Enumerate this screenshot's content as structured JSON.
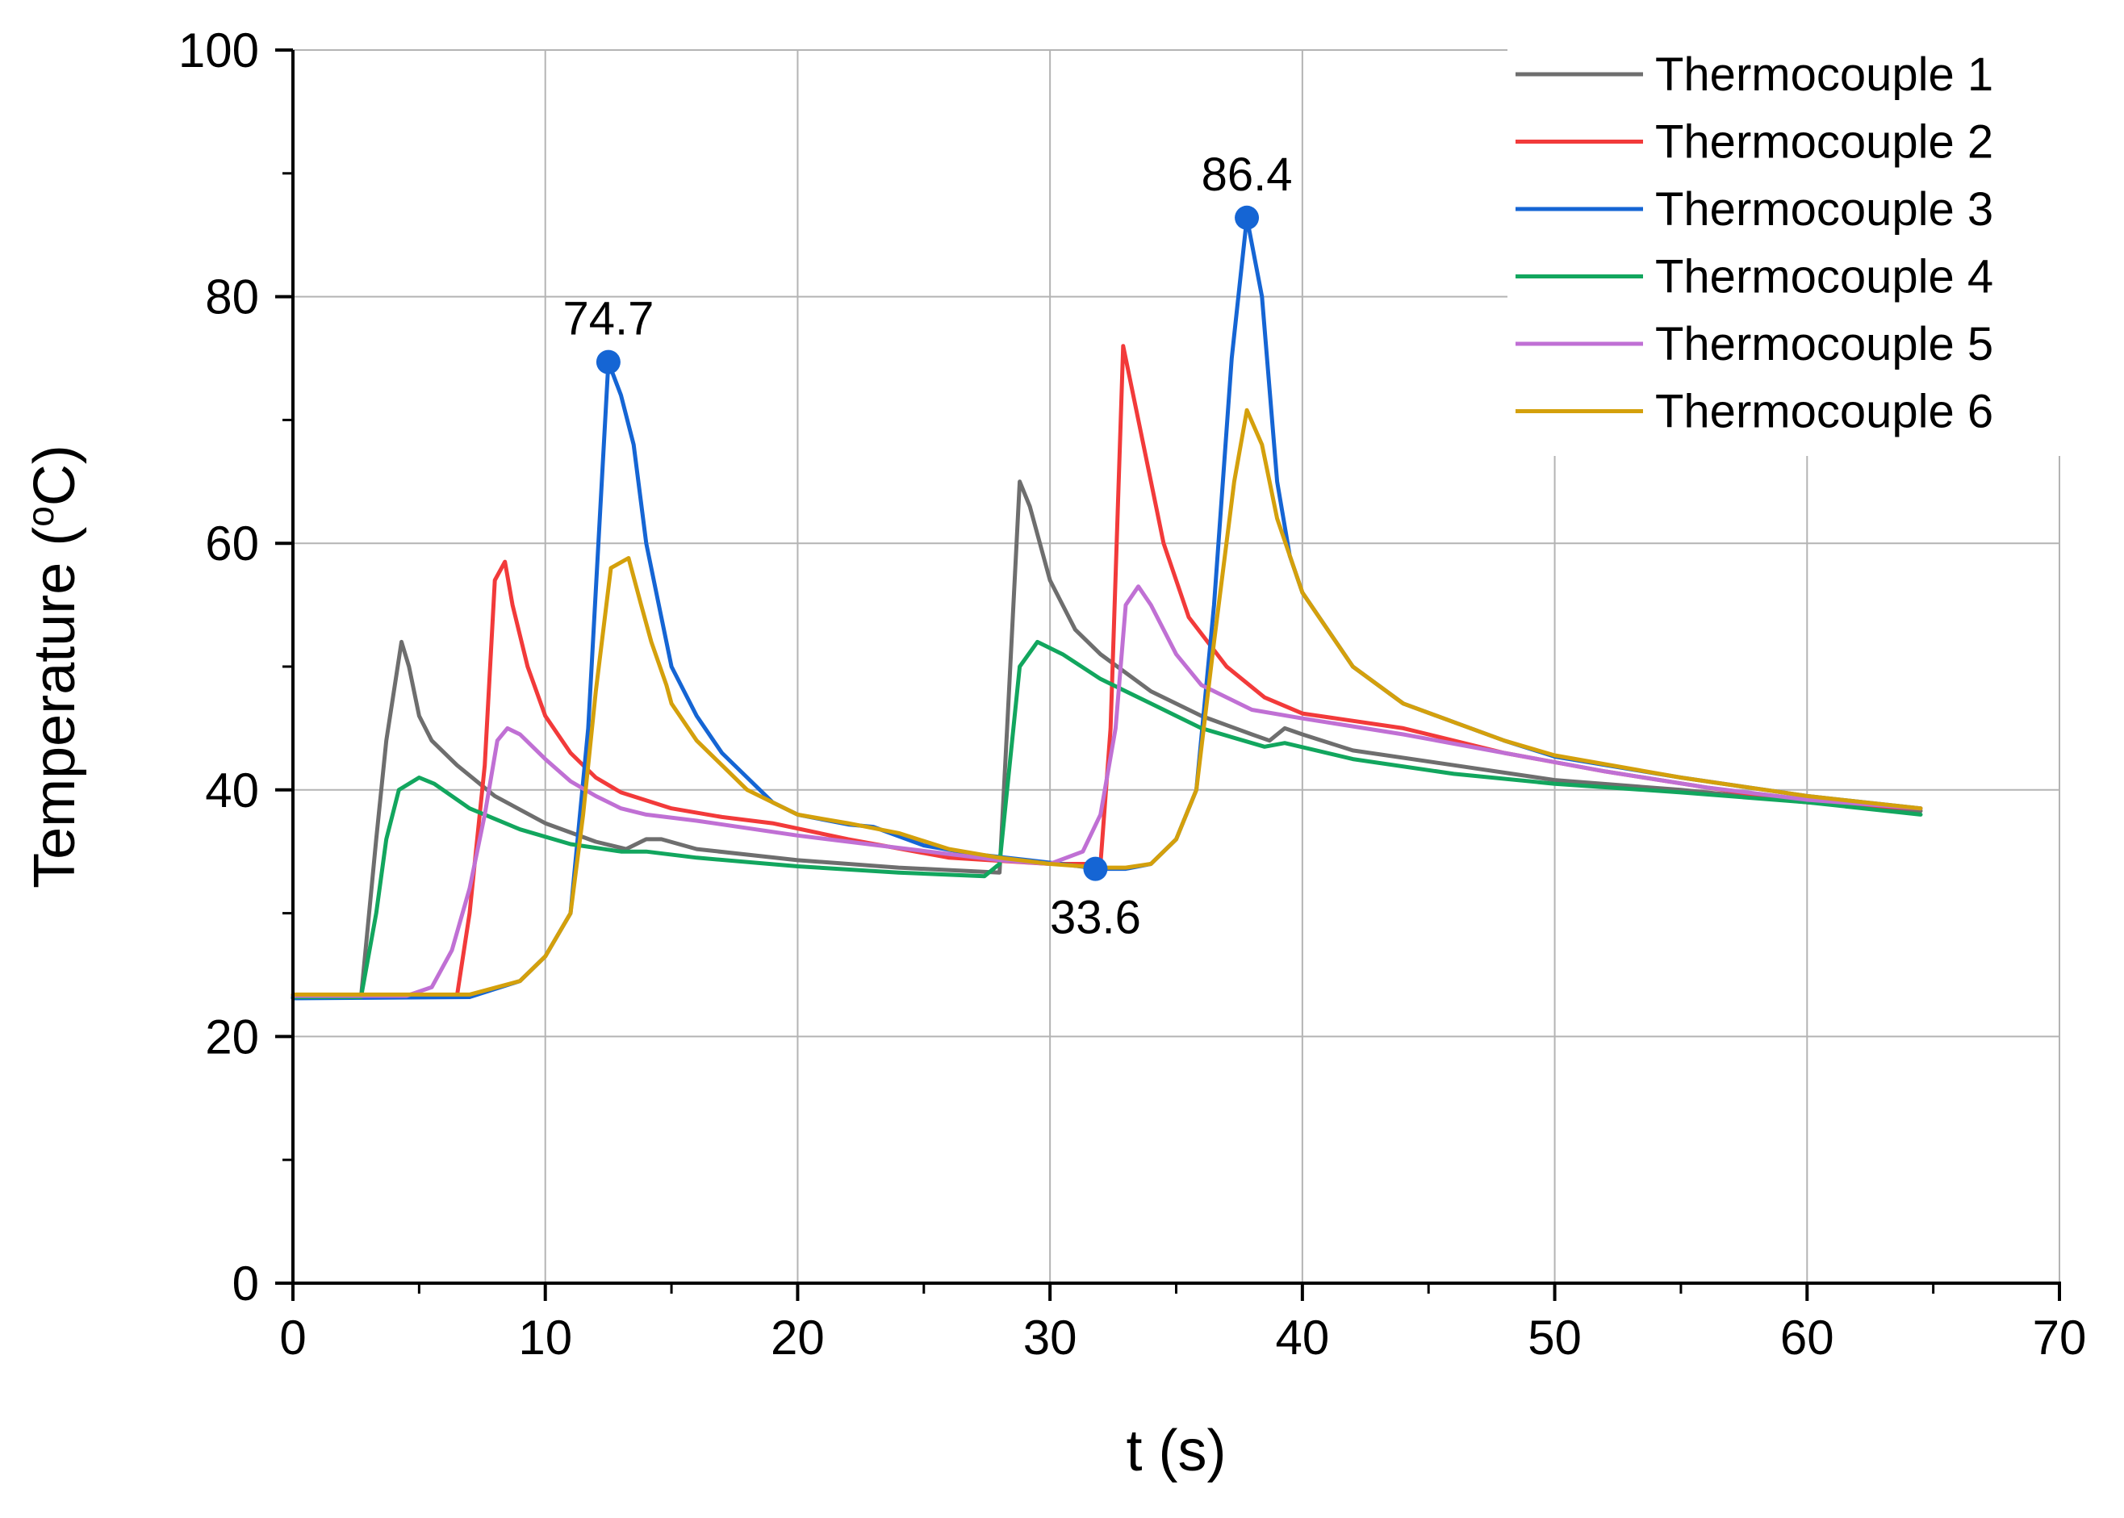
{
  "chart_data": {
    "type": "line",
    "title": "",
    "xlabel": "t (s)",
    "ylabel": "Temperature (°C)",
    "ylabel_parts": {
      "main": "Temperature (",
      "sup": "o",
      "unit": "C)"
    },
    "xlim": [
      0,
      70
    ],
    "ylim": [
      0,
      100
    ],
    "x_ticks": [
      0,
      10,
      20,
      30,
      40,
      50,
      60,
      70
    ],
    "y_ticks": [
      0,
      20,
      40,
      60,
      80,
      100
    ],
    "x_minor_step": 5,
    "y_minor_step": 10,
    "grid": true,
    "legend_position": "top-right",
    "series": [
      {
        "name": "Thermocouple 1",
        "color": "#6e6e6e",
        "points": [
          [
            0,
            23.2
          ],
          [
            2.7,
            23.2
          ],
          [
            3.3,
            36
          ],
          [
            3.7,
            44
          ],
          [
            4.0,
            48
          ],
          [
            4.3,
            52
          ],
          [
            4.6,
            50
          ],
          [
            5.0,
            46
          ],
          [
            5.5,
            44
          ],
          [
            6.5,
            42
          ],
          [
            8,
            39.5
          ],
          [
            10,
            37.3
          ],
          [
            12,
            35.8
          ],
          [
            13.2,
            35.2
          ],
          [
            14.0,
            36
          ],
          [
            14.6,
            36
          ],
          [
            16,
            35.2
          ],
          [
            20,
            34.3
          ],
          [
            24,
            33.7
          ],
          [
            28,
            33.3
          ],
          [
            28.3,
            45
          ],
          [
            28.8,
            65
          ],
          [
            29.2,
            63
          ],
          [
            30.0,
            57
          ],
          [
            31,
            53
          ],
          [
            32,
            51
          ],
          [
            34,
            48
          ],
          [
            36,
            46
          ],
          [
            38,
            44.5
          ],
          [
            38.7,
            44
          ],
          [
            39.3,
            45
          ],
          [
            40,
            44.5
          ],
          [
            42,
            43.2
          ],
          [
            46,
            42
          ],
          [
            50,
            40.8
          ],
          [
            55,
            40
          ],
          [
            60,
            39
          ],
          [
            64.5,
            38.3
          ]
        ]
      },
      {
        "name": "Thermocouple 2",
        "color": "#f23a3a",
        "points": [
          [
            0,
            23.3
          ],
          [
            6.5,
            23.3
          ],
          [
            7.0,
            30
          ],
          [
            7.6,
            42
          ],
          [
            8.0,
            57
          ],
          [
            8.4,
            58.5
          ],
          [
            8.7,
            55
          ],
          [
            9.3,
            50
          ],
          [
            10,
            46
          ],
          [
            11,
            43
          ],
          [
            12,
            41
          ],
          [
            13,
            39.8
          ],
          [
            15,
            38.5
          ],
          [
            17,
            37.8
          ],
          [
            19,
            37.3
          ],
          [
            22,
            36
          ],
          [
            26,
            34.5
          ],
          [
            30,
            34
          ],
          [
            32,
            34
          ],
          [
            32.4,
            45
          ],
          [
            32.9,
            76
          ],
          [
            33.2,
            73
          ],
          [
            33.8,
            67
          ],
          [
            34.5,
            60
          ],
          [
            35.5,
            54
          ],
          [
            37,
            50
          ],
          [
            38.5,
            47.5
          ],
          [
            40,
            46.2
          ],
          [
            44,
            45
          ],
          [
            48,
            43
          ],
          [
            52,
            41.5
          ],
          [
            56,
            40.2
          ],
          [
            60,
            39
          ],
          [
            64.5,
            38.5
          ]
        ]
      },
      {
        "name": "Thermocouple 3",
        "color": "#1565d4",
        "points": [
          [
            0,
            23.1
          ],
          [
            7,
            23.2
          ],
          [
            9,
            24.5
          ],
          [
            10,
            26.5
          ],
          [
            11,
            30
          ],
          [
            11.7,
            45
          ],
          [
            12.5,
            74.7
          ],
          [
            13.0,
            72
          ],
          [
            13.5,
            68
          ],
          [
            14,
            60
          ],
          [
            14.5,
            55
          ],
          [
            15,
            50
          ],
          [
            16,
            46
          ],
          [
            17,
            43
          ],
          [
            18,
            41
          ],
          [
            19,
            39
          ],
          [
            20,
            38
          ],
          [
            22,
            37.2
          ],
          [
            23,
            37
          ],
          [
            25,
            35.5
          ],
          [
            27,
            34.8
          ],
          [
            30,
            34.1
          ],
          [
            32,
            33.6
          ],
          [
            33,
            33.6
          ],
          [
            34,
            34
          ],
          [
            35,
            36
          ],
          [
            35.8,
            40
          ],
          [
            36.5,
            55
          ],
          [
            37.2,
            75
          ],
          [
            37.8,
            86.4
          ],
          [
            38.4,
            80
          ],
          [
            39,
            65
          ],
          [
            39.5,
            59
          ],
          [
            40,
            56
          ],
          [
            42,
            50
          ],
          [
            44,
            47
          ],
          [
            46,
            45.5
          ],
          [
            48,
            44
          ],
          [
            50,
            42.7
          ],
          [
            55,
            41
          ],
          [
            60,
            39.5
          ],
          [
            64.5,
            38.5
          ]
        ]
      },
      {
        "name": "Thermocouple 4",
        "color": "#12a65e",
        "points": [
          [
            0,
            23.2
          ],
          [
            2.7,
            23.2
          ],
          [
            3.3,
            30
          ],
          [
            3.7,
            36
          ],
          [
            4.2,
            40
          ],
          [
            5.0,
            41
          ],
          [
            5.6,
            40.5
          ],
          [
            7,
            38.5
          ],
          [
            9,
            36.8
          ],
          [
            11,
            35.6
          ],
          [
            13,
            35
          ],
          [
            14,
            35
          ],
          [
            16,
            34.5
          ],
          [
            20,
            33.8
          ],
          [
            24,
            33.3
          ],
          [
            27.4,
            33
          ],
          [
            28.0,
            34
          ],
          [
            28.8,
            50
          ],
          [
            29.5,
            52
          ],
          [
            30.5,
            51
          ],
          [
            32,
            49
          ],
          [
            34,
            47
          ],
          [
            36,
            45
          ],
          [
            38.5,
            43.5
          ],
          [
            39.3,
            43.8
          ],
          [
            42,
            42.5
          ],
          [
            46,
            41.3
          ],
          [
            50,
            40.5
          ],
          [
            55,
            39.8
          ],
          [
            60,
            39
          ],
          [
            64.5,
            38
          ]
        ]
      },
      {
        "name": "Thermocouple 5",
        "color": "#c070d4",
        "points": [
          [
            0,
            23.3
          ],
          [
            4.5,
            23.3
          ],
          [
            5.5,
            24
          ],
          [
            6.3,
            27
          ],
          [
            7.0,
            32
          ],
          [
            7.6,
            38
          ],
          [
            8.1,
            44
          ],
          [
            8.5,
            45
          ],
          [
            9,
            44.5
          ],
          [
            10,
            42.5
          ],
          [
            11,
            40.7
          ],
          [
            12,
            39.5
          ],
          [
            13,
            38.5
          ],
          [
            14,
            38
          ],
          [
            16,
            37.5
          ],
          [
            20,
            36.3
          ],
          [
            24,
            35.3
          ],
          [
            28,
            34.3
          ],
          [
            30,
            34
          ],
          [
            31.3,
            35
          ],
          [
            32,
            38
          ],
          [
            32.6,
            45
          ],
          [
            33.0,
            55
          ],
          [
            33.5,
            56.5
          ],
          [
            34,
            55
          ],
          [
            35,
            51
          ],
          [
            36,
            48.5
          ],
          [
            38,
            46.5
          ],
          [
            40,
            45.8
          ],
          [
            44,
            44.5
          ],
          [
            48,
            43
          ],
          [
            52,
            41.5
          ],
          [
            56,
            40.2
          ],
          [
            60,
            39.2
          ],
          [
            64.5,
            38.5
          ]
        ]
      },
      {
        "name": "Thermocouple 6",
        "color": "#d4a00c",
        "points": [
          [
            0,
            23.4
          ],
          [
            7,
            23.4
          ],
          [
            9,
            24.5
          ],
          [
            10,
            26.5
          ],
          [
            11,
            30
          ],
          [
            11.5,
            38
          ],
          [
            12.0,
            48
          ],
          [
            12.6,
            58
          ],
          [
            13.3,
            58.8
          ],
          [
            13.8,
            55
          ],
          [
            14.2,
            52
          ],
          [
            14.8,
            48.5
          ],
          [
            15,
            47
          ],
          [
            16,
            44
          ],
          [
            17,
            42
          ],
          [
            18,
            40
          ],
          [
            19,
            39
          ],
          [
            20,
            38
          ],
          [
            22,
            37.3
          ],
          [
            24,
            36.5
          ],
          [
            26,
            35.2
          ],
          [
            28,
            34.5
          ],
          [
            30,
            34
          ],
          [
            32,
            33.7
          ],
          [
            33,
            33.7
          ],
          [
            34,
            34
          ],
          [
            35,
            36
          ],
          [
            35.8,
            40
          ],
          [
            36.5,
            52
          ],
          [
            37.3,
            65
          ],
          [
            37.8,
            70.8
          ],
          [
            38.4,
            68
          ],
          [
            39,
            62
          ],
          [
            40,
            56
          ],
          [
            41,
            53
          ],
          [
            42,
            50
          ],
          [
            44,
            47
          ],
          [
            46,
            45.5
          ],
          [
            48,
            44
          ],
          [
            50,
            42.8
          ],
          [
            55,
            41
          ],
          [
            60,
            39.5
          ],
          [
            64.5,
            38.5
          ]
        ]
      }
    ],
    "annotations": [
      {
        "label": "74.7",
        "x": 12.5,
        "y": 74.7,
        "label_side": "above"
      },
      {
        "label": "86.4",
        "x": 37.8,
        "y": 86.4,
        "label_side": "above"
      },
      {
        "label": "33.6",
        "x": 31.8,
        "y": 33.6,
        "label_side": "below"
      }
    ],
    "annotation_color": "#1565d4"
  }
}
